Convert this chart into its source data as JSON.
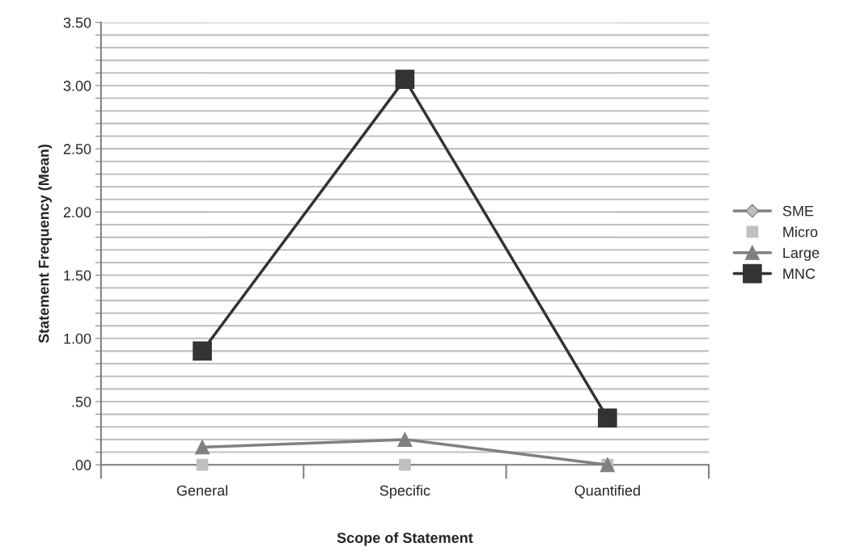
{
  "chart_data": {
    "type": "line",
    "xlabel": "Scope of Statement",
    "ylabel": "Statement Frequency (Mean)",
    "categories": [
      "General",
      "Specific",
      "Quantified"
    ],
    "series": [
      {
        "name": "SME",
        "color": "#808080",
        "marker": "diamond",
        "values": [
          null,
          null,
          null
        ]
      },
      {
        "name": "Micro",
        "type": "scatter",
        "color": "#c0c0c0",
        "marker": "square",
        "values": [
          0,
          0,
          0
        ]
      },
      {
        "name": "Large",
        "color": "#808080",
        "marker": "triangle",
        "values": [
          0.14,
          0.2,
          0
        ]
      },
      {
        "name": "MNC",
        "color": "#333333",
        "marker": "square",
        "values": [
          0.9,
          3.05,
          0.37
        ]
      }
    ],
    "ylim": [
      0,
      3.5
    ],
    "yticks": [
      {
        "value": 0,
        "label": ".00"
      },
      {
        "value": 0.1,
        "label": null
      },
      {
        "value": 0.2,
        "label": null
      },
      {
        "value": 0.3,
        "label": null
      },
      {
        "value": 0.4,
        "label": null
      },
      {
        "value": 0.5,
        "label": ".50"
      },
      {
        "value": 0.6,
        "label": null
      },
      {
        "value": 0.7,
        "label": null
      },
      {
        "value": 0.8,
        "label": null
      },
      {
        "value": 0.9,
        "label": null
      },
      {
        "value": 1.0,
        "label": "1.00"
      },
      {
        "value": 1.1,
        "label": null
      },
      {
        "value": 1.2,
        "label": null
      },
      {
        "value": 1.3,
        "label": null
      },
      {
        "value": 1.4,
        "label": null
      },
      {
        "value": 1.5,
        "label": "1.50"
      },
      {
        "value": 1.6,
        "label": null
      },
      {
        "value": 1.7,
        "label": null
      },
      {
        "value": 1.8,
        "label": null
      },
      {
        "value": 1.9,
        "label": null
      },
      {
        "value": 2.0,
        "label": "2.00"
      },
      {
        "value": 2.1,
        "label": null
      },
      {
        "value": 2.2,
        "label": null
      },
      {
        "value": 2.3,
        "label": null
      },
      {
        "value": 2.4,
        "label": null
      },
      {
        "value": 2.5,
        "label": "2.50"
      },
      {
        "value": 2.6,
        "label": null
      },
      {
        "value": 2.7,
        "label": null
      },
      {
        "value": 2.8,
        "label": null
      },
      {
        "value": 2.9,
        "label": null
      },
      {
        "value": 3.0,
        "label": "3.00"
      },
      {
        "value": 3.1,
        "label": null
      },
      {
        "value": 3.2,
        "label": null
      },
      {
        "value": 3.3,
        "label": null
      },
      {
        "value": 3.4,
        "label": null
      },
      {
        "value": 3.5,
        "label": "3.50"
      }
    ],
    "grid": "y",
    "legend": "right",
    "line_style": "solid"
  }
}
